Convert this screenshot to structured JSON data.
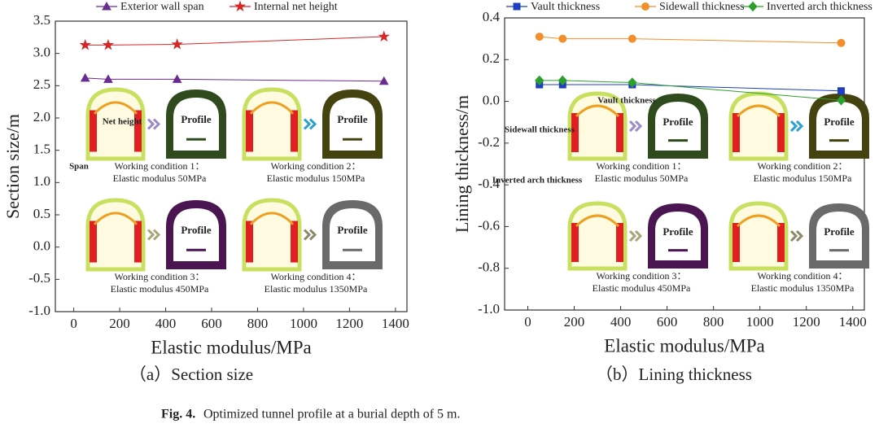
{
  "chart_data": [
    {
      "type": "line",
      "subcaption": "（a）Section size",
      "xlabel": "Elastic modulus/MPa",
      "ylabel": "Section size/m",
      "x": [
        50,
        150,
        450,
        1350
      ],
      "series": [
        {
          "name": "Exterior wall span",
          "color": "#6a2c91",
          "marker": "triangle",
          "values": [
            2.62,
            2.6,
            2.6,
            2.57
          ]
        },
        {
          "name": "Internal net height",
          "color": "#d62728",
          "marker": "star",
          "values": [
            3.13,
            3.13,
            3.14,
            3.26
          ]
        }
      ],
      "xlim": [
        -80,
        1450
      ],
      "xticks": [
        0,
        200,
        400,
        600,
        800,
        1000,
        1200,
        1400
      ],
      "ylim": [
        -1,
        3.5
      ],
      "yticks": [
        {
          "value": -1,
          "label": "-1.0"
        },
        -0.5,
        {
          "value": 0,
          "label": "0.0"
        },
        0.5,
        {
          "value": 1,
          "label": "1.0"
        },
        1.5,
        {
          "value": 2,
          "label": "2.0"
        },
        2.5,
        {
          "value": 3,
          "label": "3.0"
        },
        3.5
      ],
      "inset": {
        "profile_label": "Profile",
        "annotations": [
          "Net height",
          "Span"
        ],
        "conditions": [
          {
            "title": "Working condition 1：",
            "modulus": "Elastic modulus 50MPa"
          },
          {
            "title": "Working condition 2：",
            "modulus": "Elastic modulus 150MPa"
          },
          {
            "title": "Working condition 3：",
            "modulus": "Elastic modulus 450MPa"
          },
          {
            "title": "Working condition 4：",
            "modulus": "Elastic modulus 1350MPa"
          }
        ]
      }
    },
    {
      "type": "line",
      "subcaption": "（b）Lining thickness",
      "xlabel": "Elastic modulus/MPa",
      "ylabel": "Lining thickness/m",
      "x": [
        50,
        150,
        450,
        1350
      ],
      "series": [
        {
          "name": "Vault thickness",
          "color": "#1f3fbf",
          "marker": "square",
          "values": [
            0.08,
            0.08,
            0.08,
            0.05
          ]
        },
        {
          "name": "Sidewall thickness",
          "color": "#f28e2b",
          "marker": "circle",
          "values": [
            0.31,
            0.3,
            0.3,
            0.28
          ]
        },
        {
          "name": "Inverted arch thickness",
          "color": "#2ca02c",
          "marker": "diamond",
          "values": [
            0.1,
            0.1,
            0.09,
            0.005
          ]
        }
      ],
      "xlim": [
        -100,
        1450
      ],
      "xticks": [
        0,
        200,
        400,
        600,
        800,
        1000,
        1200,
        1400
      ],
      "ylim": [
        -1,
        0.4
      ],
      "yticks": [
        {
          "value": -1,
          "label": "-1.0"
        },
        -0.8,
        -0.6,
        -0.4,
        -0.2,
        {
          "value": 0,
          "label": "0.0"
        },
        0.2,
        0.4
      ],
      "inset": {
        "profile_label": "Profile",
        "annotations": [
          "Vault thickness",
          "Sidewall thickness",
          "Inverted arch thickness"
        ],
        "conditions": [
          {
            "title": "Working condition 1：",
            "modulus": "Elastic modulus 50MPa"
          },
          {
            "title": "Working condition 2：",
            "modulus": "Elastic modulus 150MPa"
          },
          {
            "title": "Working condition 3：",
            "modulus": "Elastic modulus 450MPa"
          },
          {
            "title": "Working condition 4：",
            "modulus": "Elastic modulus 1350MPa"
          }
        ]
      }
    }
  ],
  "caption": {
    "label": "Fig. 4.",
    "text": "Optimized tunnel profile at a burial depth of 5 m."
  }
}
